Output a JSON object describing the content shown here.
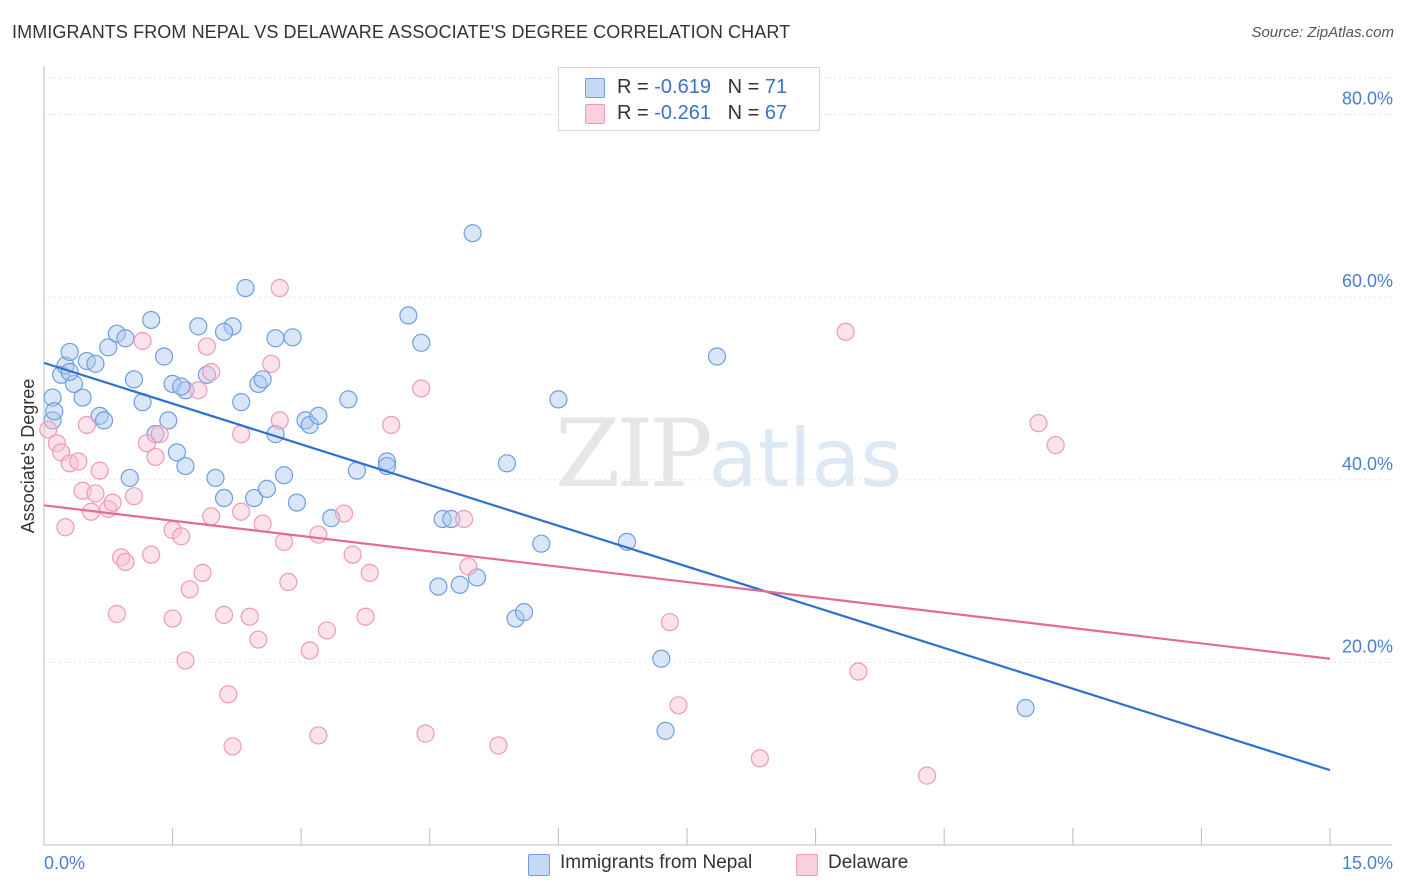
{
  "title": "IMMIGRANTS FROM NEPAL VS DELAWARE ASSOCIATE'S DEGREE CORRELATION CHART",
  "source": "Source: ZipAtlas.com",
  "watermark": {
    "zip": "ZIP",
    "atlas": "atlas"
  },
  "legend_top": [
    {
      "r_label": "R = ",
      "r_value": "-0.619",
      "n_label": "N = ",
      "n_value": "71"
    },
    {
      "r_label": "R = ",
      "r_value": "-0.261",
      "n_label": "N = ",
      "n_value": "67"
    }
  ],
  "legend_bottom": [
    "Immigrants from Nepal",
    "Delaware"
  ],
  "colors": {
    "blue": "#6f9fe0",
    "blue_line": "#2e6fd0",
    "pink": "#f09ab8",
    "pink_line": "#e56a96",
    "grid": "#e3e3e3",
    "tick": "#4a7fd0"
  },
  "chart_data": {
    "type": "scatter",
    "xlabel": "",
    "ylabel": "Associate's Degree",
    "xlim": [
      0,
      15
    ],
    "ylim": [
      0,
      84
    ],
    "x_tick_labels": [
      "0.0%",
      "15.0%"
    ],
    "y_ticks": [
      20,
      40,
      60,
      80
    ],
    "y_tick_labels": [
      "20.0%",
      "40.0%",
      "60.0%",
      "80.0%"
    ],
    "grid": true,
    "series": [
      {
        "name": "Immigrants from Nepal",
        "color": "#6f9fe0",
        "trend": [
          [
            0,
            52.8
          ],
          [
            15,
            8.2
          ]
        ],
        "points": [
          [
            0.1,
            49.0
          ],
          [
            0.1,
            46.5
          ],
          [
            0.2,
            51.5
          ],
          [
            0.25,
            52.5
          ],
          [
            0.3,
            54.0
          ],
          [
            0.35,
            50.5
          ],
          [
            0.45,
            49.0
          ],
          [
            0.5,
            53.0
          ],
          [
            0.6,
            52.7
          ],
          [
            0.65,
            47.0
          ],
          [
            0.7,
            46.5
          ],
          [
            0.75,
            54.5
          ],
          [
            0.85,
            56.0
          ],
          [
            0.95,
            55.5
          ],
          [
            1.05,
            51.0
          ],
          [
            1.15,
            48.5
          ],
          [
            1.25,
            57.5
          ],
          [
            1.3,
            45.0
          ],
          [
            1.4,
            53.5
          ],
          [
            1.45,
            46.5
          ],
          [
            1.55,
            43.0
          ],
          [
            1.5,
            50.5
          ],
          [
            1.65,
            41.5
          ],
          [
            1.65,
            49.8
          ],
          [
            1.6,
            50.2
          ],
          [
            1.8,
            56.8
          ],
          [
            1.9,
            51.5
          ],
          [
            2.0,
            40.2
          ],
          [
            2.1,
            38.0
          ],
          [
            2.2,
            56.8
          ],
          [
            2.3,
            48.5
          ],
          [
            2.35,
            61.0
          ],
          [
            2.45,
            38.0
          ],
          [
            2.5,
            50.5
          ],
          [
            2.55,
            51.0
          ],
          [
            2.6,
            39.0
          ],
          [
            2.7,
            55.5
          ],
          [
            2.7,
            45.0
          ],
          [
            2.8,
            40.5
          ],
          [
            2.9,
            55.6
          ],
          [
            2.95,
            37.5
          ],
          [
            3.05,
            46.5
          ],
          [
            3.1,
            46.0
          ],
          [
            3.2,
            47.0
          ],
          [
            3.35,
            35.8
          ],
          [
            3.55,
            48.8
          ],
          [
            3.65,
            41.0
          ],
          [
            4.0,
            42.0
          ],
          [
            4.0,
            41.5
          ],
          [
            4.25,
            58.0
          ],
          [
            4.4,
            55.0
          ],
          [
            4.6,
            28.3
          ],
          [
            4.65,
            35.7
          ],
          [
            4.75,
            35.7
          ],
          [
            4.85,
            28.5
          ],
          [
            5.0,
            67.0
          ],
          [
            5.05,
            29.3
          ],
          [
            5.4,
            41.8
          ],
          [
            5.5,
            24.8
          ],
          [
            5.6,
            25.5
          ],
          [
            5.8,
            33.0
          ],
          [
            6.0,
            48.8
          ],
          [
            6.8,
            33.2
          ],
          [
            7.2,
            20.4
          ],
          [
            7.25,
            12.5
          ],
          [
            7.85,
            53.5
          ],
          [
            11.45,
            15.0
          ],
          [
            0.3,
            51.8
          ],
          [
            0.12,
            47.5
          ],
          [
            1.0,
            40.2
          ],
          [
            2.1,
            56.2
          ]
        ]
      },
      {
        "name": "Delaware",
        "color": "#f09ab8",
        "trend": [
          [
            0,
            37.2
          ],
          [
            15,
            20.4
          ]
        ],
        "points": [
          [
            0.05,
            45.5
          ],
          [
            0.15,
            44.0
          ],
          [
            0.2,
            43.0
          ],
          [
            0.25,
            34.8
          ],
          [
            0.3,
            41.8
          ],
          [
            0.4,
            42.0
          ],
          [
            0.45,
            38.8
          ],
          [
            0.5,
            46.0
          ],
          [
            0.55,
            36.5
          ],
          [
            0.6,
            38.5
          ],
          [
            0.65,
            41.0
          ],
          [
            0.75,
            36.8
          ],
          [
            0.8,
            37.5
          ],
          [
            0.85,
            25.3
          ],
          [
            0.9,
            31.5
          ],
          [
            0.95,
            31.0
          ],
          [
            1.05,
            38.2
          ],
          [
            1.15,
            55.2
          ],
          [
            1.2,
            44.0
          ],
          [
            1.25,
            31.8
          ],
          [
            1.3,
            42.5
          ],
          [
            1.35,
            45.0
          ],
          [
            1.5,
            34.5
          ],
          [
            1.5,
            24.8
          ],
          [
            1.6,
            33.8
          ],
          [
            1.65,
            20.2
          ],
          [
            1.7,
            28.0
          ],
          [
            1.8,
            49.8
          ],
          [
            1.85,
            29.8
          ],
          [
            1.9,
            54.6
          ],
          [
            1.95,
            51.8
          ],
          [
            1.95,
            36.0
          ],
          [
            2.1,
            25.2
          ],
          [
            2.15,
            16.5
          ],
          [
            2.2,
            10.8
          ],
          [
            2.3,
            45.0
          ],
          [
            2.3,
            36.5
          ],
          [
            2.4,
            25.0
          ],
          [
            2.5,
            22.5
          ],
          [
            2.55,
            35.2
          ],
          [
            2.65,
            52.7
          ],
          [
            2.75,
            61.0
          ],
          [
            2.75,
            46.5
          ],
          [
            2.8,
            33.2
          ],
          [
            2.85,
            28.8
          ],
          [
            3.1,
            21.3
          ],
          [
            3.2,
            12.0
          ],
          [
            3.2,
            34.0
          ],
          [
            3.3,
            23.5
          ],
          [
            3.5,
            36.3
          ],
          [
            3.6,
            31.8
          ],
          [
            3.75,
            25.0
          ],
          [
            3.8,
            29.8
          ],
          [
            4.05,
            46.0
          ],
          [
            4.4,
            50.0
          ],
          [
            4.45,
            12.2
          ],
          [
            4.9,
            35.7
          ],
          [
            4.95,
            30.5
          ],
          [
            5.3,
            10.9
          ],
          [
            7.3,
            24.4
          ],
          [
            7.4,
            15.3
          ],
          [
            8.35,
            9.5
          ],
          [
            9.35,
            56.2
          ],
          [
            9.5,
            19.0
          ],
          [
            10.3,
            7.6
          ],
          [
            11.6,
            46.2
          ],
          [
            11.8,
            43.8
          ]
        ]
      }
    ]
  }
}
